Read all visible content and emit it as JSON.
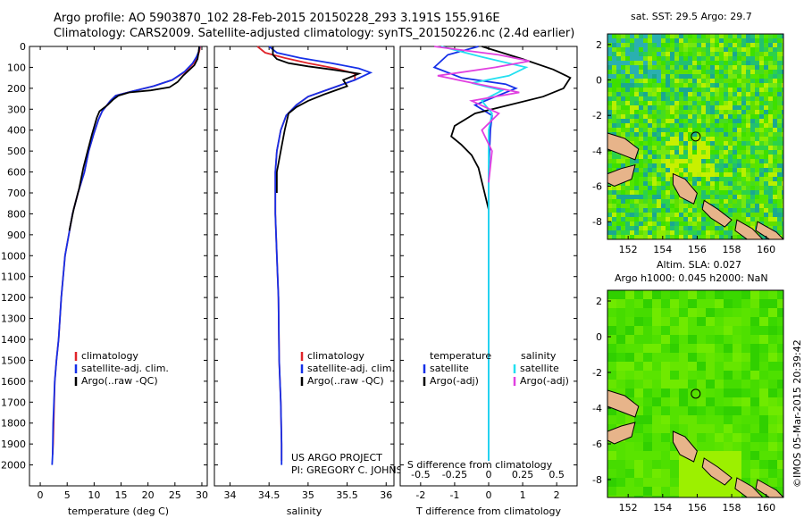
{
  "header": {
    "line1": "Argo profile: AO 5903870_102 28-Feb-2015 20150228_293 3.191S 155.916E",
    "line2": "Climatology: CARS2009. Satellite-adjusted climatology: synTS_20150226.nc (2.4d earlier)"
  },
  "right_top_title": "sat. SST: 29.5 Argo: 29.7",
  "right_bottom_title": [
    "Altim. SLA: 0.027",
    "Argo h1000: 0.045 h2000: NaN"
  ],
  "side_stamp": "©IMOS 05-Mar-2015 20:39:42",
  "project_note": [
    "US ARGO PROJECT",
    "PI: GREGORY C. JOHNSON"
  ],
  "colors": {
    "clim": "#e0242a",
    "sat": "#1530e8",
    "argo": "#000000",
    "sat_s": "#22e0f0",
    "argo_s": "#e040e0"
  },
  "chart_data": [
    {
      "type": "line",
      "title": "",
      "xlabel": "temperature (deg C)",
      "ylabel": "",
      "xlim": [
        -2,
        31
      ],
      "ylim": [
        2100,
        0
      ],
      "xticks": [
        0,
        5,
        10,
        15,
        20,
        25,
        30
      ],
      "yticks": [
        0,
        100,
        200,
        300,
        400,
        500,
        600,
        700,
        800,
        900,
        1000,
        1100,
        1200,
        1300,
        1400,
        1500,
        1600,
        1700,
        1800,
        1900,
        2000
      ],
      "legend": [
        "climatology",
        "satellite-adj. clim.",
        "Argo(..raw -QC)"
      ],
      "series": [
        {
          "name": "climatology",
          "color": "#e0242a",
          "x": [
            29.7,
            29.5,
            29.2,
            28.5,
            27,
            24.5,
            21,
            17,
            14,
            13,
            11.5,
            10.8,
            9.9,
            9,
            8.2,
            7,
            6,
            5.3,
            4.6,
            3.9,
            3.4,
            3.0,
            2.7,
            2.5,
            2.4,
            2.3
          ],
          "y": [
            0,
            25,
            50,
            80,
            120,
            160,
            190,
            215,
            235,
            260,
            310,
            350,
            420,
            500,
            600,
            700,
            800,
            900,
            1000,
            1200,
            1400,
            1500,
            1600,
            1800,
            1900,
            1950
          ]
        },
        {
          "name": "satellite-adj. clim.",
          "color": "#1530e8",
          "x": [
            29.6,
            29.4,
            29.0,
            28.3,
            26.8,
            24.5,
            21,
            17,
            14,
            13,
            11.5,
            10.8,
            9.9,
            9,
            8.2,
            7,
            6,
            5.3,
            4.6,
            3.9,
            3.4,
            3.0,
            2.7,
            2.4,
            2.3,
            2.2
          ],
          "y": [
            0,
            25,
            50,
            80,
            120,
            160,
            190,
            215,
            235,
            260,
            310,
            350,
            420,
            500,
            600,
            700,
            800,
            900,
            1000,
            1200,
            1400,
            1500,
            1600,
            1800,
            1950,
            2000
          ]
        },
        {
          "name": "Argo(..raw -QC)",
          "color": "#000000",
          "x": [
            29.5,
            29.4,
            29.2,
            28.6,
            26.5,
            25.5,
            24,
            20.5,
            16.5,
            14.5,
            13.5,
            12.5,
            11,
            10.5,
            9.6,
            8.8,
            8.0,
            7.2,
            6.2,
            5.4
          ],
          "y": [
            0,
            25,
            60,
            90,
            140,
            170,
            195,
            210,
            220,
            235,
            255,
            280,
            310,
            340,
            420,
            500,
            580,
            680,
            780,
            880
          ]
        }
      ]
    },
    {
      "type": "line",
      "title": "",
      "xlabel": "salinity",
      "ylabel": "",
      "xlim": [
        33.8,
        36.1
      ],
      "ylim": [
        2100,
        0
      ],
      "xticks": [
        34,
        34.5,
        35,
        35.5,
        36
      ],
      "legend": [
        "climatology",
        "satellite-adj. clim.",
        "Argo(..raw -QC)"
      ],
      "series": [
        {
          "name": "climatology",
          "color": "#e0242a",
          "x": [
            34.35,
            34.45,
            34.7,
            35.0,
            35.35,
            35.6,
            35.6,
            35.3,
            35.0,
            34.85,
            34.72,
            34.65,
            34.6,
            34.58,
            34.58,
            34.6,
            34.62,
            34.63,
            34.65,
            34.66,
            34.66
          ],
          "y": [
            0,
            30,
            55,
            80,
            105,
            130,
            160,
            200,
            240,
            280,
            330,
            400,
            500,
            600,
            800,
            1000,
            1200,
            1500,
            1700,
            1900,
            1980
          ]
        },
        {
          "name": "satellite-adj. clim.",
          "color": "#1530e8",
          "x": [
            34.5,
            34.6,
            34.9,
            35.3,
            35.65,
            35.8,
            35.6,
            35.3,
            35.0,
            34.85,
            34.72,
            34.65,
            34.6,
            34.58,
            34.58,
            34.6,
            34.62,
            34.63,
            34.65,
            34.66,
            34.66
          ],
          "y": [
            0,
            30,
            55,
            80,
            105,
            125,
            160,
            200,
            240,
            280,
            330,
            400,
            500,
            600,
            800,
            1000,
            1200,
            1500,
            1700,
            1900,
            2000
          ]
        },
        {
          "name": "Argo(..raw -QC)",
          "color": "#000000",
          "x": [
            34.55,
            34.55,
            34.6,
            34.75,
            35.0,
            35.3,
            35.65,
            35.45,
            35.5,
            35.2,
            35.0,
            34.85,
            34.75,
            34.7,
            34.65,
            34.6,
            34.6
          ],
          "y": [
            0,
            40,
            60,
            80,
            95,
            110,
            130,
            160,
            190,
            230,
            260,
            290,
            320,
            400,
            500,
            600,
            700
          ]
        }
      ]
    },
    {
      "type": "line",
      "title": "",
      "xlabel": "T difference from climatology",
      "xlabel2": "S difference from climatology",
      "xlim": [
        -2.6,
        2.6
      ],
      "ylim": [
        2100,
        0
      ],
      "xticks": [
        -2,
        -1,
        0,
        1,
        2
      ],
      "xtick_labels": [
        "-2",
        "-1",
        "0",
        "1",
        "2"
      ],
      "s_ticks": [
        -2,
        -1,
        0,
        1,
        2
      ],
      "s_tick_labels": [
        "-0.5",
        "-0.25",
        "0",
        "0.25",
        "0.5"
      ],
      "legend_groups": [
        {
          "heading": "temperature",
          "entries": [
            "satellite",
            "Argo(-adj)"
          ]
        },
        {
          "heading": "salinity",
          "entries": [
            "satellite",
            "Argo(-adj)"
          ]
        }
      ],
      "series": [
        {
          "name": "T satellite",
          "color": "#1530e8",
          "x": [
            -0.3,
            -1.2,
            -1.6,
            -0.8,
            0.5,
            0.8,
            0.2,
            -0.4,
            0.1,
            0.05,
            0.0,
            0.0,
            0.0,
            0.0,
            0.0
          ],
          "y": [
            0,
            40,
            100,
            150,
            180,
            200,
            240,
            280,
            330,
            400,
            600,
            900,
            1200,
            1600,
            1980
          ]
        },
        {
          "name": "T Argo(-adj)",
          "color": "#000000",
          "x": [
            -0.2,
            1.0,
            1.9,
            2.4,
            2.2,
            1.6,
            0.6,
            -0.4,
            -1.0,
            -1.1,
            -0.8,
            -0.5,
            -0.3,
            -0.15,
            0.0
          ],
          "y": [
            0,
            60,
            110,
            150,
            200,
            240,
            280,
            320,
            380,
            430,
            470,
            520,
            580,
            680,
            780
          ]
        },
        {
          "name": "S satellite",
          "color": "#22e0f0",
          "x": [
            -1.4,
            -0.2,
            1.1,
            0.6,
            -0.5,
            0.4,
            -0.2,
            0.1,
            0.0,
            0.0,
            0.0,
            0.0,
            0.0,
            0.0
          ],
          "y": [
            0,
            50,
            100,
            140,
            175,
            210,
            260,
            320,
            400,
            600,
            900,
            1300,
            1700,
            1980
          ]
        },
        {
          "name": "S Argo(-adj)",
          "color": "#e040e0",
          "x": [
            -1.6,
            0.3,
            1.2,
            0.2,
            -1.5,
            -0.3,
            0.9,
            -0.5,
            0.3,
            -0.2,
            0.1,
            0.0
          ],
          "y": [
            0,
            40,
            70,
            100,
            140,
            180,
            220,
            260,
            320,
            400,
            500,
            650
          ]
        }
      ]
    },
    {
      "type": "heatmap",
      "title": "sat. SST: 29.5 Argo: 29.7",
      "xlim": [
        150.8,
        161
      ],
      "ylim": [
        -9,
        2.6
      ],
      "xticks": [
        152,
        154,
        156,
        158,
        160
      ],
      "yticks": [
        -8,
        -6,
        -4,
        -2,
        0,
        2
      ],
      "argo_position": [
        155.916,
        -3.191
      ]
    },
    {
      "type": "heatmap",
      "title": "Altim. SLA: 0.027",
      "xlim": [
        150.8,
        161
      ],
      "ylim": [
        -9,
        2.6
      ],
      "xticks": [
        152,
        154,
        156,
        158,
        160
      ],
      "yticks": [
        -8,
        -6,
        -4,
        -2,
        0,
        2
      ],
      "argo_position": [
        155.916,
        -3.191
      ]
    }
  ]
}
